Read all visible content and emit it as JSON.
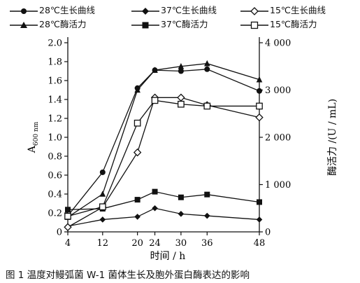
{
  "caption": "图 1  温度对鳗弧菌 W-1 菌体生长及胞外蛋白酶表达的影响",
  "chart_data": {
    "type": "line",
    "x": [
      4,
      12,
      20,
      24,
      30,
      36,
      48
    ],
    "x_ticks": [
      "4",
      "12",
      "20",
      "24",
      "30",
      "36",
      "48"
    ],
    "xlabel": "时间 / h",
    "ylabel_left": "A600 nm",
    "ylabel_left_main": "A",
    "ylabel_left_sub": "600 nm",
    "ylabel_right": "酶活力 /(U / mL)",
    "ylim_left": [
      0,
      2.0
    ],
    "ylim_right": [
      0,
      4000
    ],
    "y_ticks_left": [
      "0",
      "0.2",
      "0.4",
      "0.6",
      "0.8",
      "1.0",
      "1.2",
      "1.4",
      "1.6",
      "1.8",
      "2.0"
    ],
    "y_ticks_right": [
      "0",
      "1 000",
      "2 000",
      "3 000",
      "4 000"
    ],
    "grid": false,
    "legend_position": "top",
    "series": [
      {
        "name": "28℃生长曲线",
        "axis": "left",
        "marker": "filled-circle",
        "values": [
          0.17,
          0.63,
          1.52,
          1.71,
          1.7,
          1.72,
          1.49
        ]
      },
      {
        "name": "37℃生长曲线",
        "axis": "left",
        "marker": "filled-diamond",
        "values": [
          0.06,
          0.13,
          0.16,
          0.25,
          0.19,
          0.17,
          0.13
        ]
      },
      {
        "name": "15℃生长曲线",
        "axis": "left",
        "marker": "open-diamond",
        "values": [
          0.05,
          0.26,
          0.84,
          1.42,
          1.42,
          1.34,
          1.21
        ]
      },
      {
        "name": "28℃酶活力",
        "axis": "right",
        "marker": "filled-triangle",
        "values": [
          310,
          800,
          3000,
          3420,
          3500,
          3560,
          3220
        ]
      },
      {
        "name": "37℃酶活力",
        "axis": "right",
        "marker": "filled-square",
        "values": [
          470,
          490,
          680,
          850,
          730,
          790,
          630
        ]
      },
      {
        "name": "15℃酶活力",
        "axis": "right",
        "marker": "open-square",
        "values": [
          330,
          530,
          2300,
          2780,
          2700,
          2660,
          2660
        ]
      }
    ]
  }
}
